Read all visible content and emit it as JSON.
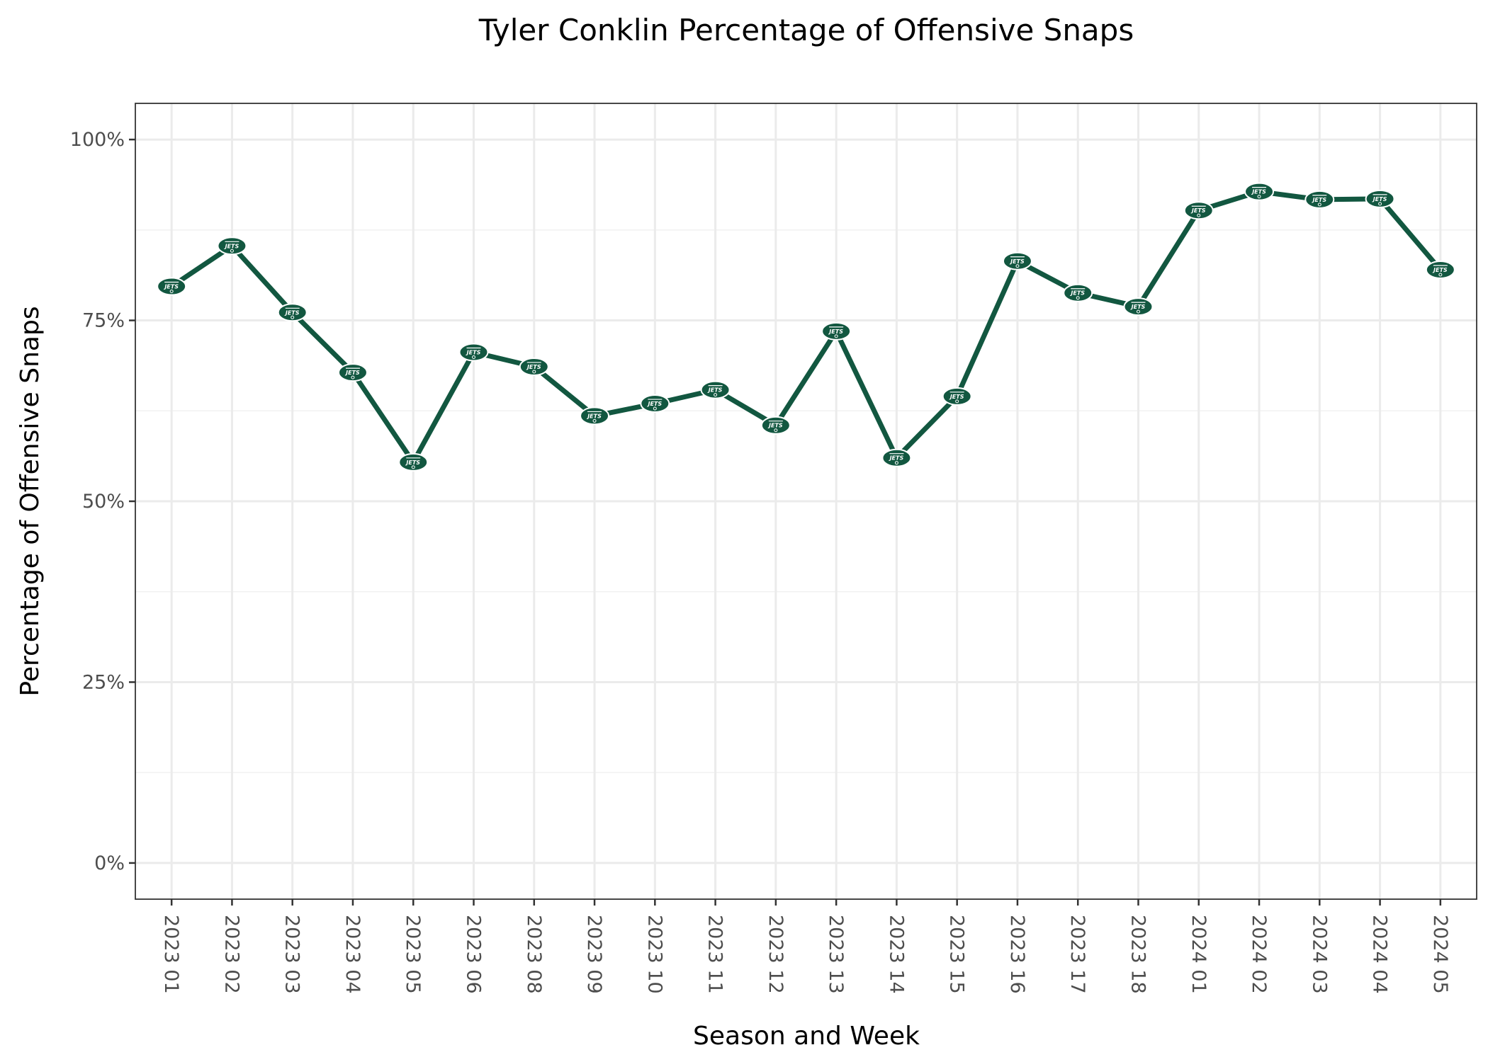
{
  "chart_data": {
    "type": "line",
    "title": "Tyler Conklin Percentage of Offensive Snaps",
    "xlabel": "Season and Week",
    "ylabel": "Percentage of Offensive Snaps",
    "ylim": [
      -0.05,
      1.05
    ],
    "y_ticks": [
      0,
      0.25,
      0.5,
      0.75,
      1.0
    ],
    "y_tick_labels": [
      "0%",
      "25%",
      "50%",
      "75%",
      "100%"
    ],
    "grid": true,
    "legend": "none",
    "line_color": "#125740",
    "marker": "new-york-jets-logo-icon",
    "marker_text": "JETS",
    "categories": [
      "2023 01",
      "2023 02",
      "2023 03",
      "2023 04",
      "2023 05",
      "2023 06",
      "2023 08",
      "2023 09",
      "2023 10",
      "2023 11",
      "2023 12",
      "2023 13",
      "2023 14",
      "2023 15",
      "2023 16",
      "2023 17",
      "2023 18",
      "2024 01",
      "2024 02",
      "2024 03",
      "2024 04",
      "2024 05"
    ],
    "values": [
      0.797,
      0.853,
      0.761,
      0.678,
      0.554,
      0.706,
      0.686,
      0.618,
      0.635,
      0.654,
      0.605,
      0.735,
      0.56,
      0.645,
      0.832,
      0.788,
      0.769,
      0.902,
      0.928,
      0.917,
      0.918,
      0.82
    ]
  }
}
